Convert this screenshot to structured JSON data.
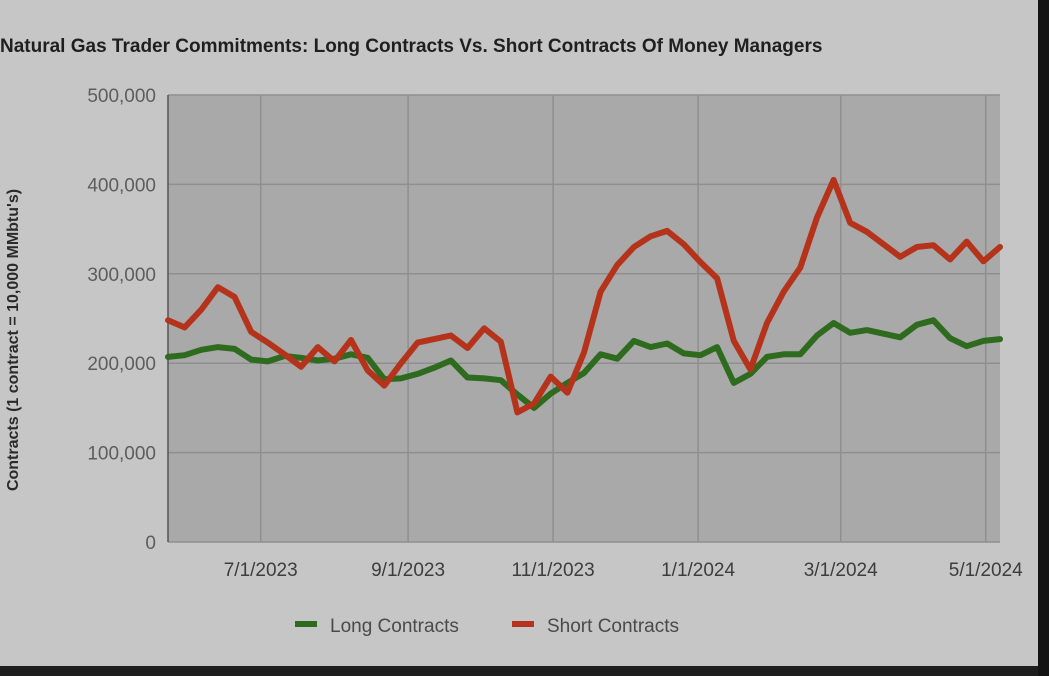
{
  "chart_data": {
    "type": "line",
    "title": "Natural Gas Trader Commitments: Long Contracts Vs. Short Contracts Of Money Managers",
    "ylabel": "Contracts (1 contract = 10,000 MMbtu's)",
    "xlabel": "",
    "ylim": [
      0,
      500000
    ],
    "xlim": [
      "2023-05-23",
      "2024-05-07"
    ],
    "yticks": [
      0,
      100000,
      200000,
      300000,
      400000,
      500000
    ],
    "ytick_labels": [
      "0",
      "100,000",
      "200,000",
      "300,000",
      "400,000",
      "500,000"
    ],
    "xticks": [
      "2023-07-01",
      "2023-09-01",
      "2023-11-01",
      "2024-01-01",
      "2024-03-01",
      "2024-05-01"
    ],
    "xtick_labels": [
      "7/1/2023",
      "9/1/2023",
      "11/1/2023",
      "1/1/2024",
      "3/1/2024",
      "5/1/2024"
    ],
    "grid": true,
    "legend": "bottom",
    "x": [
      "2023-05-23",
      "2023-05-30",
      "2023-06-06",
      "2023-06-13",
      "2023-06-20",
      "2023-06-27",
      "2023-07-04",
      "2023-07-11",
      "2023-07-18",
      "2023-07-25",
      "2023-08-01",
      "2023-08-08",
      "2023-08-15",
      "2023-08-22",
      "2023-08-29",
      "2023-09-05",
      "2023-09-12",
      "2023-09-19",
      "2023-09-26",
      "2023-10-03",
      "2023-10-10",
      "2023-10-17",
      "2023-10-24",
      "2023-10-31",
      "2023-11-07",
      "2023-11-14",
      "2023-11-21",
      "2023-11-28",
      "2023-12-05",
      "2023-12-12",
      "2023-12-19",
      "2023-12-26",
      "2024-01-02",
      "2024-01-09",
      "2024-01-16",
      "2024-01-23",
      "2024-01-30",
      "2024-02-06",
      "2024-02-13",
      "2024-02-20",
      "2024-02-27",
      "2024-03-05",
      "2024-03-12",
      "2024-03-19",
      "2024-03-26",
      "2024-04-02",
      "2024-04-09",
      "2024-04-16",
      "2024-04-23",
      "2024-04-30",
      "2024-05-07"
    ],
    "series": [
      {
        "name": "Long Contracts",
        "color": "#2e6b1e",
        "values": [
          207000,
          209000,
          215000,
          218000,
          216000,
          204000,
          202000,
          208000,
          206000,
          203000,
          205000,
          210000,
          206000,
          182000,
          183000,
          188000,
          195000,
          203000,
          184000,
          183000,
          181000,
          165000,
          150000,
          166000,
          178000,
          189000,
          210000,
          205000,
          225000,
          218000,
          222000,
          211000,
          209000,
          218000,
          178000,
          188000,
          207000,
          210000,
          210000,
          231000,
          245000,
          234000,
          237000,
          233000,
          229000,
          243000,
          248000,
          228000,
          219000,
          225000,
          227000
        ]
      },
      {
        "name": "Short Contracts",
        "color": "#b5331a",
        "values": [
          248000,
          240000,
          260000,
          285000,
          274000,
          235000,
          223000,
          210000,
          196000,
          218000,
          202000,
          226000,
          192000,
          175000,
          200000,
          223000,
          227000,
          231000,
          217000,
          239000,
          224000,
          145000,
          155000,
          185000,
          167000,
          212000,
          280000,
          310000,
          330000,
          342000,
          348000,
          333000,
          313000,
          295000,
          225000,
          193000,
          245000,
          280000,
          307000,
          363000,
          405000,
          357000,
          347000,
          333000,
          319000,
          330000,
          332000,
          316000,
          336000,
          314000,
          330000
        ]
      }
    ],
    "legend_entries": [
      {
        "label": "Long Contracts",
        "color": "#2e6b1e"
      },
      {
        "label": "Short Contracts",
        "color": "#b5331a"
      }
    ],
    "background": "#c6c6c6",
    "plot_background": "#a9a9a9",
    "grid_color": "#8f8f8f"
  }
}
